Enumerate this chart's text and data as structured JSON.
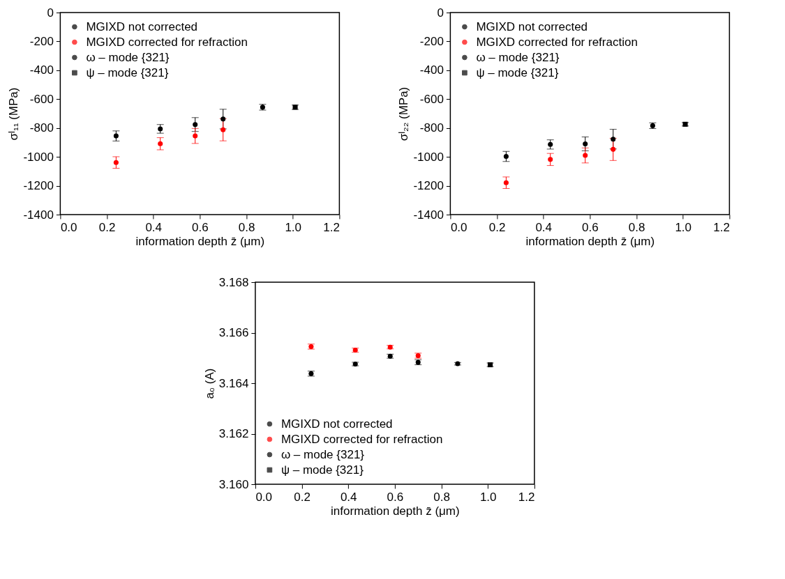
{
  "chart_data": [
    {
      "type": "scatter",
      "ylabel": "σᴵ₁₁ (MPa)",
      "xlabel": "information depth z̄ (μm)",
      "xlim": [
        0,
        1.2
      ],
      "xticks": [
        {
          "value": 0,
          "label": "0.0"
        },
        {
          "value": 0.2,
          "label": "0.2"
        },
        {
          "value": 0.4,
          "label": "0.4"
        },
        {
          "value": 0.6,
          "label": "0.6"
        },
        {
          "value": 0.8,
          "label": "0.8"
        },
        {
          "value": 1,
          "label": "1.0"
        },
        {
          "value": 1.2,
          "label": "1.2"
        }
      ],
      "ylim": [
        -1400,
        0
      ],
      "yticks": [
        -1400,
        -1200,
        -1000,
        -800,
        -600,
        -400,
        -200,
        0
      ],
      "legend": "top left",
      "series": [
        {
          "name": "MGIXD not corrected",
          "color": "#000000",
          "marker": "circle",
          "x": [
            0.24,
            0.43,
            0.58,
            0.7
          ],
          "values": [
            -855,
            -806,
            -776,
            -738
          ],
          "errors": [
            35,
            30,
            48,
            68
          ]
        },
        {
          "name": "MGIXD corrected for refraction",
          "color": "#ff0000",
          "marker": "circle",
          "x": [
            0.24,
            0.43,
            0.58,
            0.7
          ],
          "values": [
            -1039,
            -909,
            -855,
            -812
          ],
          "errors": [
            40,
            42,
            52,
            77
          ]
        },
        {
          "name": "ω – mode {321}",
          "color": "#000000",
          "marker": "circle",
          "x": [
            0.87
          ],
          "values": [
            -656
          ],
          "errors": [
            20
          ]
        },
        {
          "name": "ψ – mode {321}",
          "color": "#000000",
          "marker": "square",
          "x": [
            1.01
          ],
          "values": [
            -656
          ],
          "errors": [
            15
          ]
        }
      ]
    },
    {
      "type": "scatter",
      "ylabel": "σᴵ₂₂ (MPa)",
      "xlabel": "information depth z̄ (μm)",
      "xlim": [
        0,
        1.2
      ],
      "xticks": [
        {
          "value": 0,
          "label": "0.0"
        },
        {
          "value": 0.2,
          "label": "0.2"
        },
        {
          "value": 0.4,
          "label": "0.4"
        },
        {
          "value": 0.6,
          "label": "0.6"
        },
        {
          "value": 0.8,
          "label": "0.8"
        },
        {
          "value": 1,
          "label": "1.0"
        },
        {
          "value": 1.2,
          "label": "1.2"
        }
      ],
      "ylim": [
        -1400,
        0
      ],
      "yticks": [
        -1400,
        -1200,
        -1000,
        -800,
        -600,
        -400,
        -200,
        0
      ],
      "legend": "top left",
      "series": [
        {
          "name": "MGIXD not corrected",
          "color": "#000000",
          "marker": "circle",
          "x": [
            0.24,
            0.43,
            0.58,
            0.7
          ],
          "values": [
            -997,
            -914,
            -910,
            -877
          ],
          "errors": [
            35,
            32,
            48,
            68
          ]
        },
        {
          "name": "MGIXD corrected for refraction",
          "color": "#ff0000",
          "marker": "circle",
          "x": [
            0.24,
            0.43,
            0.58,
            0.7
          ],
          "values": [
            -1179,
            -1018,
            -990,
            -948
          ],
          "errors": [
            40,
            42,
            52,
            77
          ]
        },
        {
          "name": "ω – mode {321}",
          "color": "#000000",
          "marker": "circle",
          "x": [
            0.87
          ],
          "values": [
            -784
          ],
          "errors": [
            20
          ]
        },
        {
          "name": "ψ – mode {321}",
          "color": "#000000",
          "marker": "square",
          "x": [
            1.01
          ],
          "values": [
            -774
          ],
          "errors": [
            12
          ]
        }
      ]
    },
    {
      "type": "scatter",
      "ylabel": "a₀ (A)",
      "xlabel": "information depth z̄ (μm)",
      "xlim": [
        0,
        1.2
      ],
      "xticks": [
        {
          "value": 0,
          "label": "0.0"
        },
        {
          "value": 0.2,
          "label": "0.2"
        },
        {
          "value": 0.4,
          "label": "0.4"
        },
        {
          "value": 0.6,
          "label": "0.6"
        },
        {
          "value": 0.8,
          "label": "0.8"
        },
        {
          "value": 1,
          "label": "1.0"
        },
        {
          "value": 1.2,
          "label": "1.2"
        }
      ],
      "ylim": [
        3.16,
        3.168
      ],
      "yticks": [
        {
          "value": 3.16,
          "label": "3.160"
        },
        {
          "value": 3.162,
          "label": "3.162"
        },
        {
          "value": 3.164,
          "label": "3.164"
        },
        {
          "value": 3.166,
          "label": "3.166"
        },
        {
          "value": 3.168,
          "label": "3.168"
        }
      ],
      "legend": "bottom left",
      "series": [
        {
          "name": "MGIXD not corrected",
          "color": "#000000",
          "marker": "circle",
          "x": [
            0.24,
            0.43,
            0.58,
            0.7
          ],
          "values": [
            3.16438,
            3.16476,
            3.16507,
            3.16483
          ],
          "errors": [
            0.0001,
            7e-05,
            8e-05,
            0.0001
          ]
        },
        {
          "name": "MGIXD corrected for refraction",
          "color": "#ff0000",
          "marker": "circle",
          "x": [
            0.24,
            0.43,
            0.58,
            0.7
          ],
          "values": [
            3.16545,
            3.16531,
            3.16543,
            3.16509
          ],
          "errors": [
            0.0001,
            8e-05,
            7e-05,
            0.0001
          ]
        },
        {
          "name": "ω – mode {321}",
          "color": "#000000",
          "marker": "circle",
          "x": [
            0.87
          ],
          "values": [
            3.16477
          ],
          "errors": [
            5e-05
          ]
        },
        {
          "name": "ψ – mode {321}",
          "color": "#000000",
          "marker": "square",
          "x": [
            1.01
          ],
          "values": [
            3.16473
          ],
          "errors": [
            7e-05
          ]
        }
      ]
    }
  ]
}
